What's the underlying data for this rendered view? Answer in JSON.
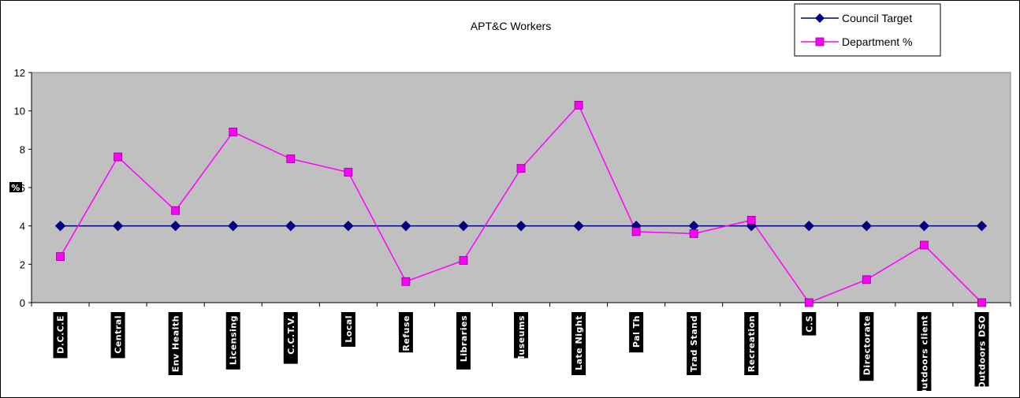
{
  "chart_data": {
    "type": "line",
    "title": "APT&C Workers",
    "ylabel": "%",
    "ylim": [
      0,
      12
    ],
    "yticks": [
      0,
      2,
      4,
      6,
      8,
      10,
      12
    ],
    "grid": false,
    "legend_position": "top-right",
    "categories": [
      "D.C.C.E",
      "Central",
      "Env Health",
      "Licensing",
      "C.C.T.V.",
      "Local",
      "Refuse",
      "Libraries",
      "Museums",
      "Late Night",
      "Pal Th",
      "Trad Stand",
      "Recreation",
      "C.S",
      "Directorate",
      "Outdoors client",
      "Outdoors DSO"
    ],
    "series": [
      {
        "name": "Council Target",
        "color": "#000080",
        "marker": "diamond",
        "values": [
          4,
          4,
          4,
          4,
          4,
          4,
          4,
          4,
          4,
          4,
          4,
          4,
          4,
          4,
          4,
          4,
          4
        ]
      },
      {
        "name": "Department %",
        "color": "#FF00FF",
        "marker": "square",
        "values": [
          2.4,
          7.6,
          4.8,
          8.9,
          7.5,
          6.8,
          1.1,
          2.2,
          7.0,
          10.3,
          3.7,
          3.6,
          4.3,
          0.0,
          1.2,
          3.0,
          0.0
        ]
      }
    ],
    "colors": {
      "plot_area": "#C0C0C0",
      "label_box": "#000000"
    }
  }
}
